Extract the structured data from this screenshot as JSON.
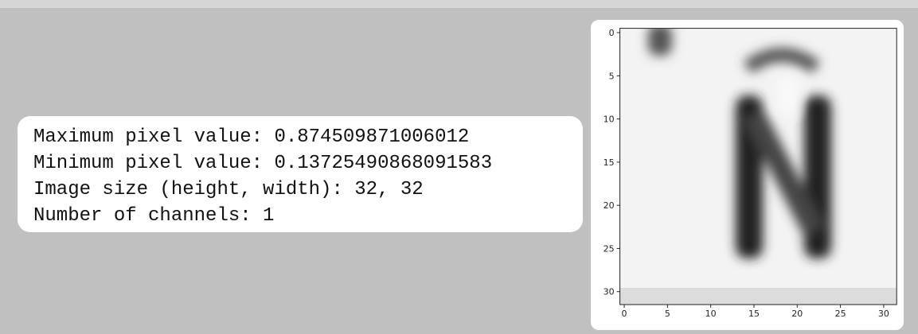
{
  "text_output": {
    "lines": [
      "Maximum pixel value: 0.874509871006012",
      "Minimum pixel value: 0.13725490868091583",
      "Image size (height, width): 32, 32",
      "Number of channels: 1"
    ]
  },
  "image_plot": {
    "xlim": [
      -0.5,
      31.5
    ],
    "ylim": [
      31.5,
      -0.5
    ],
    "xticks": [
      0,
      5,
      10,
      15,
      20,
      25,
      30
    ],
    "yticks": [
      0,
      5,
      10,
      15,
      20,
      25,
      30
    ]
  }
}
